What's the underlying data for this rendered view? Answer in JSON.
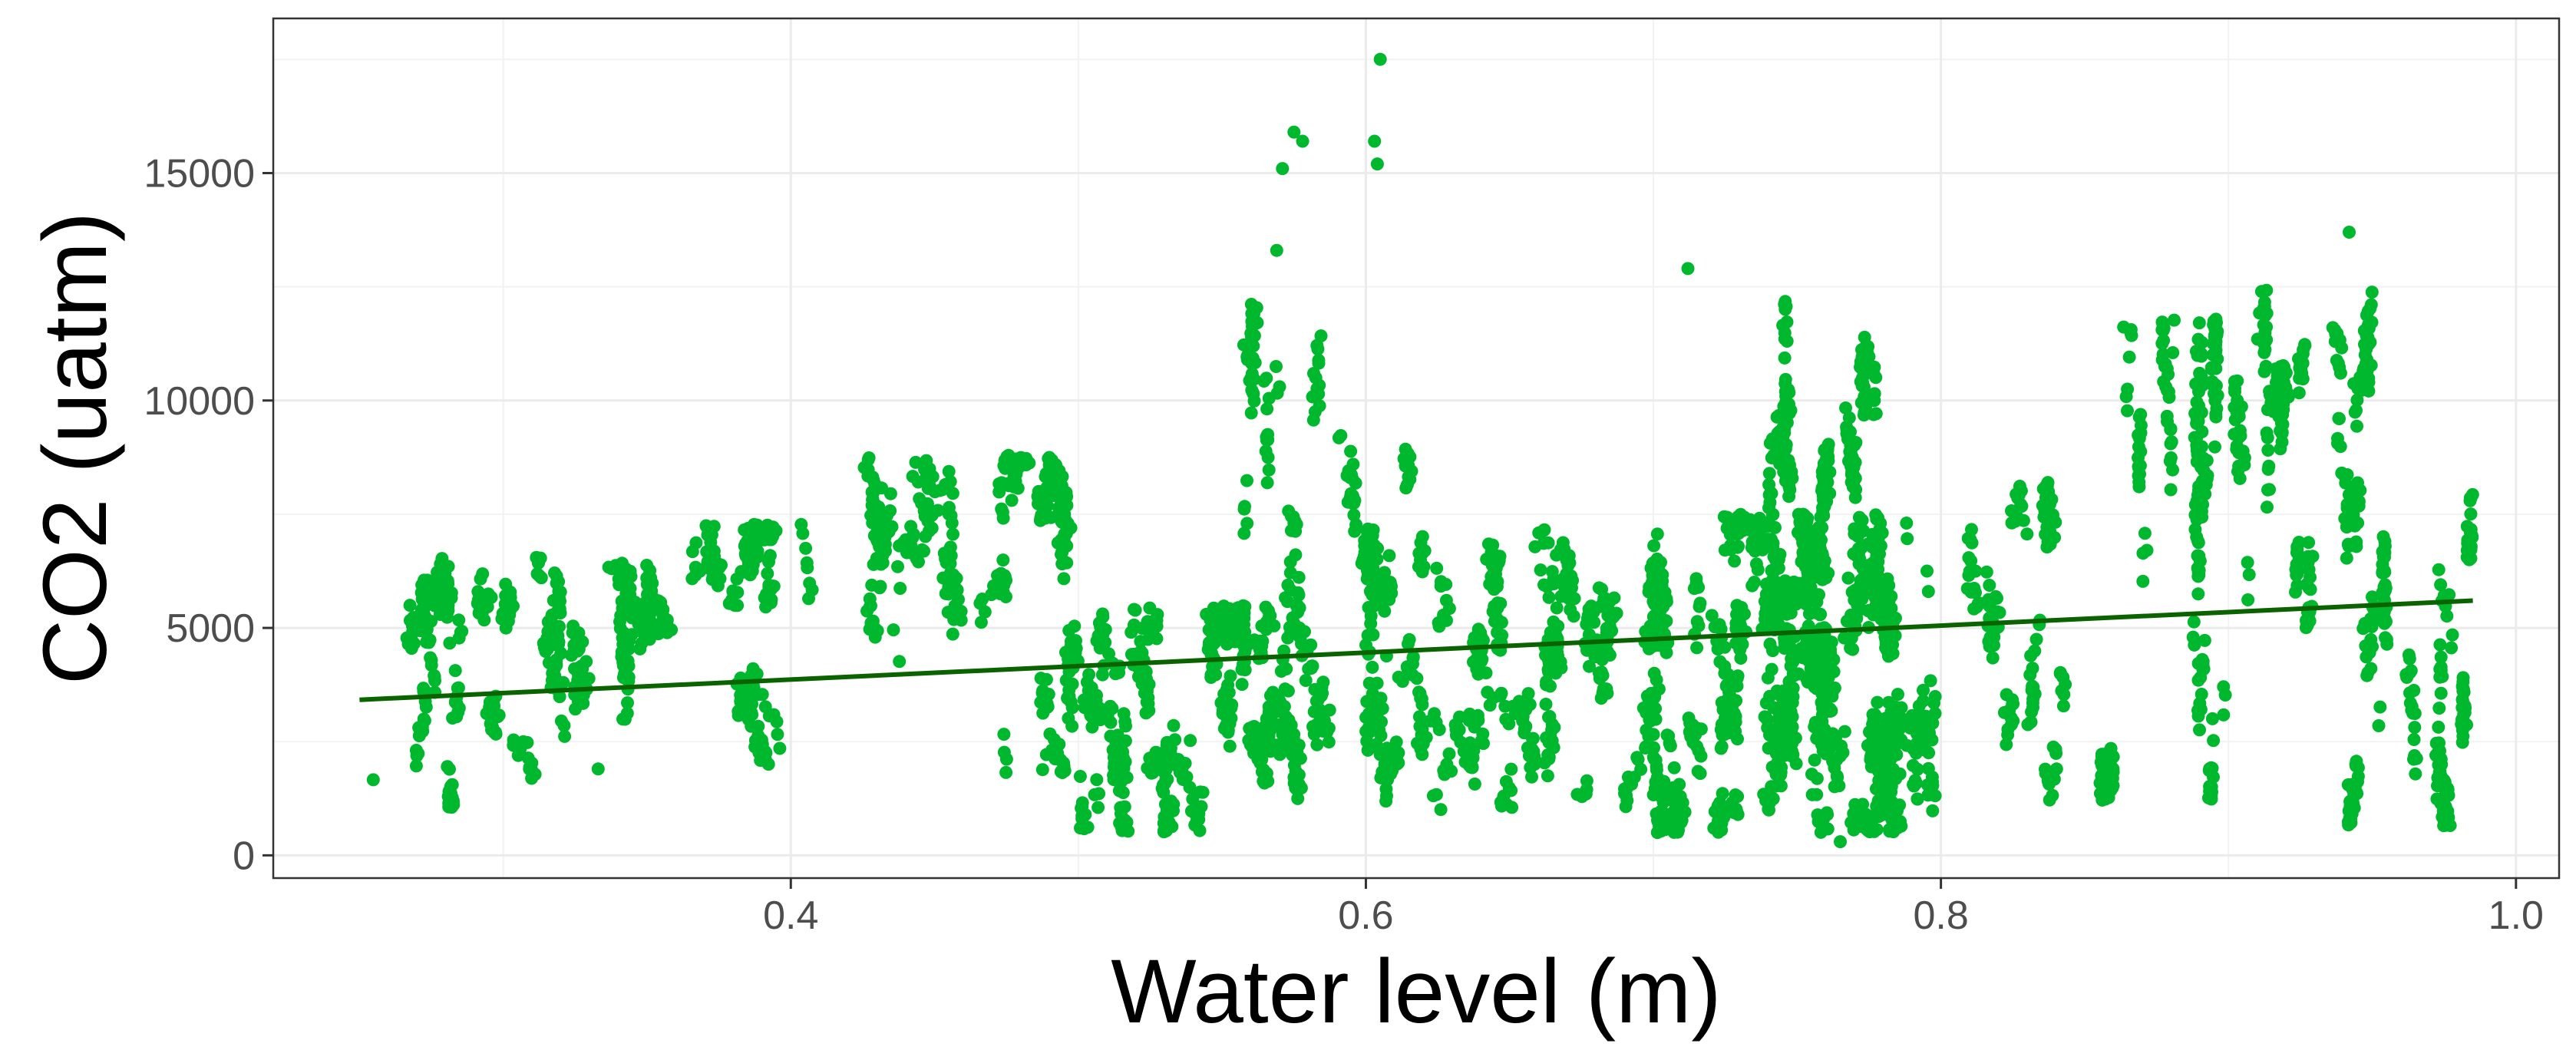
{
  "chart_data": {
    "type": "scatter",
    "title": "",
    "xlabel": "Water level (m)",
    "ylabel": "CO2 (uatm)",
    "xlim": [
      0.22,
      1.015
    ],
    "ylim": [
      -500,
      18400
    ],
    "x_ticks": [
      0.4,
      0.6,
      0.8,
      1.0
    ],
    "x_tick_labels": [
      "0.4",
      "0.6",
      "0.8",
      "1.0"
    ],
    "y_ticks": [
      0,
      5000,
      10000,
      15000
    ],
    "y_tick_labels": [
      "0",
      "5000",
      "10000",
      "15000"
    ],
    "x_minor_gridlines": [
      0.3,
      0.5,
      0.7,
      0.9
    ],
    "y_minor_gridlines": [
      2500,
      7500,
      12500,
      17500
    ],
    "grid": true,
    "theme": "bw",
    "legend": "none",
    "point_color": "#00b82e",
    "trend_line_color": "#0b6300",
    "trend_line": {
      "x": [
        0.25,
        0.985
      ],
      "y": [
        3420,
        5600
      ]
    },
    "clusters": [
      {
        "x": [
          0.25,
          0.33
        ],
        "y": [
          1000,
          6600
        ],
        "n": 320
      },
      {
        "x": [
          0.33,
          0.42
        ],
        "y": [
          2000,
          7300
        ],
        "n": 320
      },
      {
        "x": [
          0.42,
          0.5
        ],
        "y": [
          1800,
          8800
        ],
        "n": 360
      },
      {
        "x": [
          0.5,
          0.58
        ],
        "y": [
          500,
          5500
        ],
        "n": 520
      },
      {
        "x": [
          0.55,
          0.62
        ],
        "y": [
          2000,
          12300
        ],
        "n": 180
      },
      {
        "x": [
          0.6,
          0.7
        ],
        "y": [
          1000,
          7200
        ],
        "n": 520
      },
      {
        "x": [
          0.7,
          0.8
        ],
        "y": [
          500,
          7500
        ],
        "n": 1100
      },
      {
        "x": [
          0.74,
          0.79
        ],
        "y": [
          6000,
          12800
        ],
        "n": 220
      },
      {
        "x": [
          0.79,
          0.86
        ],
        "y": [
          1200,
          8200
        ],
        "n": 240
      },
      {
        "x": [
          0.86,
          0.9
        ],
        "y": [
          1200,
          11800
        ],
        "n": 200
      },
      {
        "x": [
          0.9,
          0.95
        ],
        "y": [
          5000,
          13800
        ],
        "n": 260
      },
      {
        "x": [
          0.94,
          0.985
        ],
        "y": [
          600,
          8000
        ],
        "n": 240
      }
    ],
    "outliers": [
      {
        "x": 0.575,
        "y": 15900
      },
      {
        "x": 0.571,
        "y": 15100
      },
      {
        "x": 0.578,
        "y": 15700
      },
      {
        "x": 0.569,
        "y": 13300
      },
      {
        "x": 0.605,
        "y": 17500
      },
      {
        "x": 0.603,
        "y": 15700
      },
      {
        "x": 0.604,
        "y": 15200
      },
      {
        "x": 0.333,
        "y": 1900
      },
      {
        "x": 0.712,
        "y": 12900
      },
      {
        "x": 0.765,
        "y": 300
      },
      {
        "x": 0.942,
        "y": 13700
      }
    ]
  }
}
